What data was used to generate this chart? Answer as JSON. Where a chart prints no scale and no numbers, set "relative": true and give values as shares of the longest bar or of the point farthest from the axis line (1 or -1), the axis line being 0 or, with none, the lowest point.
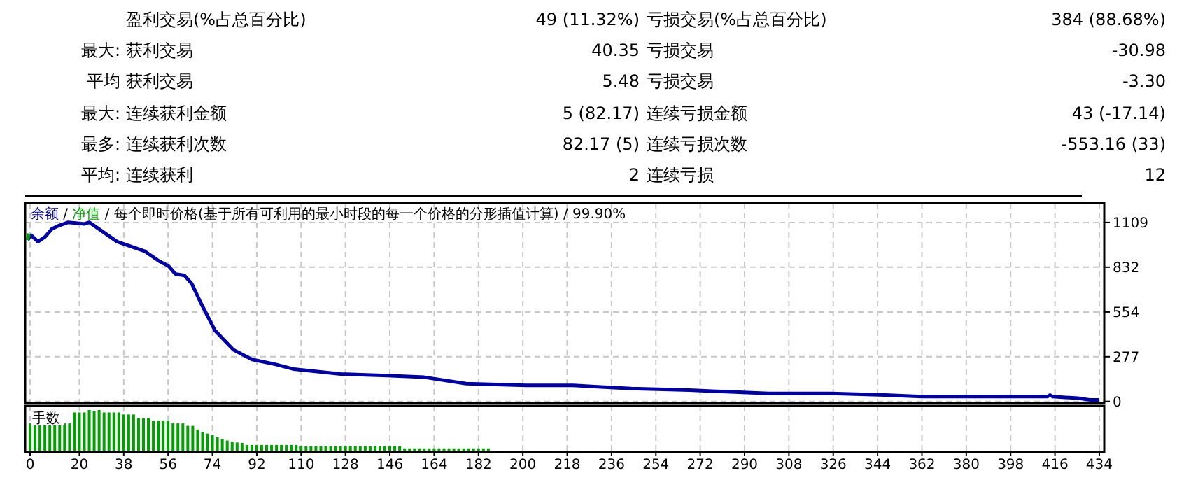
{
  "chart_data": [
    {
      "type": "other",
      "annotations": [
        "盈利交易(%占总百分比)",
        "49 (11.32%)",
        "亏损交易(%占总百分比)",
        "384 (88.68%)",
        "最大:",
        "获利交易",
        "40.35",
        "亏损交易",
        "-30.98",
        "平均",
        "获利交易",
        "5.48",
        "亏损交易",
        "-3.30",
        "最大:",
        "连续获利金额",
        "5 (82.17)",
        "连续亏损金额",
        "43 (-17.14)",
        "最多:",
        "连续获利次数",
        "82.17 (5)",
        "连续亏损次数",
        "-553.16 (33)",
        "平均:",
        "连续获利",
        "2",
        "连续亏损",
        "12"
      ]
    },
    {
      "type": "line",
      "legend_title": "/",
      "title": "/ 每个即时价格(基于所有可利用的最小时段的每一个价格的分形插值计算) / 99.90%",
      "legend": "top left",
      "grid": true,
      "tick_labels": "y",
      "xlim": [
        -2,
        436
      ],
      "xticks": [
        0,
        20,
        38,
        56,
        74,
        92,
        110,
        128,
        146,
        164,
        182,
        200,
        218,
        236,
        254,
        272,
        290,
        308,
        326,
        344,
        362,
        380,
        398,
        416,
        434
      ],
      "ylim": [
        -10,
        1230
      ],
      "yticks": [
        0,
        277,
        554,
        832,
        1109
      ],
      "series": [
        {
          "name": "余额",
          "color": "#0000a8",
          "x": [
            -1,
            0.4,
            3.2,
            6.1,
            8.9,
            11.7,
            15.5,
            22.1,
            24,
            27.8,
            35.3,
            42.9,
            46.6,
            52.3,
            56.1,
            58.9,
            62.7,
            65.6,
            69.3,
            75,
            82.5,
            90.1,
            99.5,
            107.1,
            126,
            144.9,
            160,
            177,
            201.5,
            220.4,
            231.7,
            244,
            267.6,
            282.7,
            299.7,
            325.2,
            346.9,
            362,
            413,
            414,
            415,
            425.3,
            430,
            433.8
          ],
          "values": [
            1000,
            1030,
            990,
            1020,
            1070,
            1090,
            1110,
            1100,
            1110,
            1070,
            990,
            950,
            930,
            870,
            840,
            790,
            780,
            730,
            610,
            440,
            320,
            260,
            230,
            200,
            170,
            160,
            150,
            110,
            100,
            100,
            90,
            80,
            70,
            60,
            50,
            50,
            40,
            30,
            30,
            40,
            30,
            20,
            10,
            10
          ]
        },
        {
          "name": "净值",
          "color": "#00a000",
          "x": [
            -1,
            -0.5
          ],
          "values": [
            1000,
            1040
          ]
        }
      ]
    },
    {
      "type": "bar",
      "title": "手数",
      "relative": true,
      "color": "#00a000",
      "grid": "x",
      "xlim": [
        -2,
        436
      ],
      "xticks": [
        0,
        20,
        38,
        56,
        74,
        92,
        110,
        128,
        146,
        164,
        182,
        200,
        218,
        236,
        254,
        272,
        290,
        308,
        326,
        344,
        362,
        380,
        398,
        416,
        434
      ],
      "x": [
        0,
        2,
        4,
        6,
        8,
        10,
        12,
        14,
        16,
        18,
        20,
        22,
        24,
        26,
        28,
        30,
        32,
        34,
        36,
        38,
        40,
        42,
        44,
        46,
        48,
        50,
        52,
        54,
        56,
        58,
        60,
        62,
        64,
        66,
        68,
        70,
        72,
        74,
        76,
        78,
        80,
        82,
        84,
        86,
        88,
        90,
        92,
        94,
        96,
        98,
        100,
        102,
        104,
        106,
        108,
        110,
        112,
        114,
        116,
        118,
        120,
        122,
        124,
        126,
        128,
        130,
        132,
        134,
        136,
        138,
        140,
        142,
        144,
        146,
        148,
        150,
        152,
        154,
        156,
        158,
        160,
        162,
        164,
        166,
        168,
        170,
        172,
        174,
        176,
        178,
        180,
        182,
        184,
        186
      ],
      "values": [
        0.67,
        0.67,
        0.67,
        0.67,
        0.67,
        0.67,
        0.67,
        0.67,
        0.67,
        0.94,
        0.94,
        0.94,
        1,
        0.97,
        1,
        0.94,
        0.94,
        0.94,
        0.94,
        0.89,
        0.89,
        0.89,
        0.8,
        0.8,
        0.8,
        0.74,
        0.74,
        0.74,
        0.74,
        0.67,
        0.67,
        0.67,
        0.61,
        0.61,
        0.52,
        0.46,
        0.42,
        0.38,
        0.33,
        0.28,
        0.25,
        0.22,
        0.2,
        0.19,
        0.14,
        0.14,
        0.14,
        0.14,
        0.14,
        0.14,
        0.14,
        0.14,
        0.14,
        0.14,
        0.14,
        0.11,
        0.11,
        0.11,
        0.11,
        0.11,
        0.11,
        0.11,
        0.11,
        0.11,
        0.11,
        0.11,
        0.11,
        0.11,
        0.11,
        0.11,
        0.11,
        0.11,
        0.11,
        0.11,
        0.11,
        0.11,
        0.056,
        0.056,
        0.056,
        0.056,
        0.056,
        0.056,
        0.056,
        0.056,
        0.056,
        0.056,
        0.056,
        0.056,
        0.056,
        0.056,
        0.056,
        0.056,
        0.056,
        0.056
      ]
    }
  ]
}
